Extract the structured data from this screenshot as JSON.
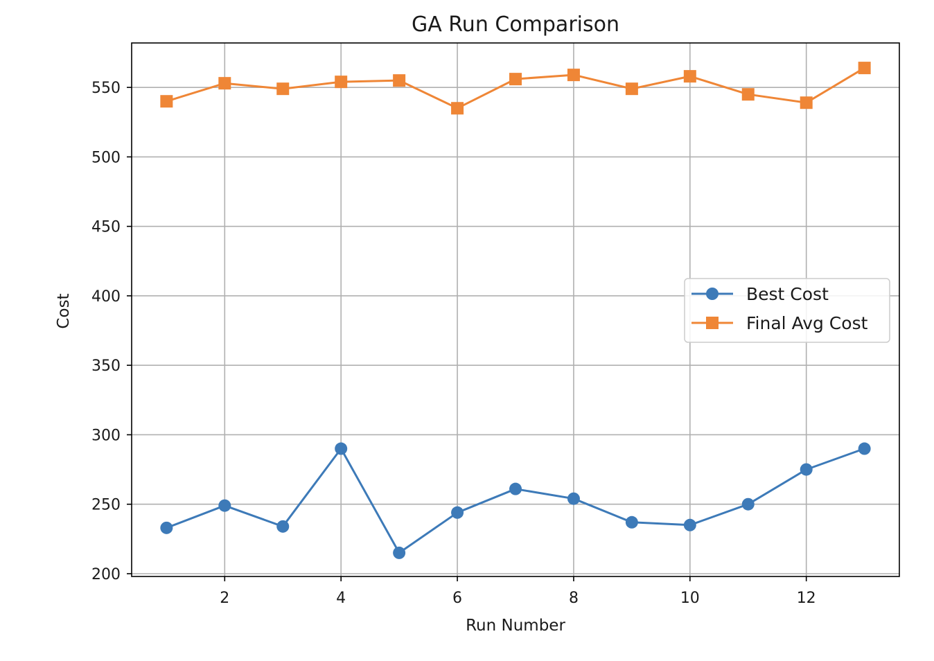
{
  "chart_data": {
    "type": "line",
    "title": "GA Run Comparison",
    "xlabel": "Run Number",
    "ylabel": "Cost",
    "x": [
      1,
      2,
      3,
      4,
      5,
      6,
      7,
      8,
      9,
      10,
      11,
      12,
      13
    ],
    "xlim": [
      0.4,
      13.6
    ],
    "ylim": [
      198,
      582
    ],
    "xticks": [
      2,
      4,
      6,
      8,
      10,
      12
    ],
    "yticks": [
      200,
      250,
      300,
      350,
      400,
      450,
      500,
      550
    ],
    "grid": true,
    "legend_position": "center-right",
    "series": [
      {
        "name": "Best Cost",
        "marker": "circle",
        "color": "#3d7ab8",
        "values": [
          233,
          249,
          234,
          290,
          215,
          244,
          261,
          254,
          237,
          235,
          250,
          275,
          290
        ]
      },
      {
        "name": "Final Avg Cost",
        "marker": "square",
        "color": "#ef8636",
        "values": [
          540,
          553,
          549,
          554,
          555,
          535,
          556,
          559,
          549,
          558,
          545,
          539,
          564
        ]
      }
    ]
  }
}
